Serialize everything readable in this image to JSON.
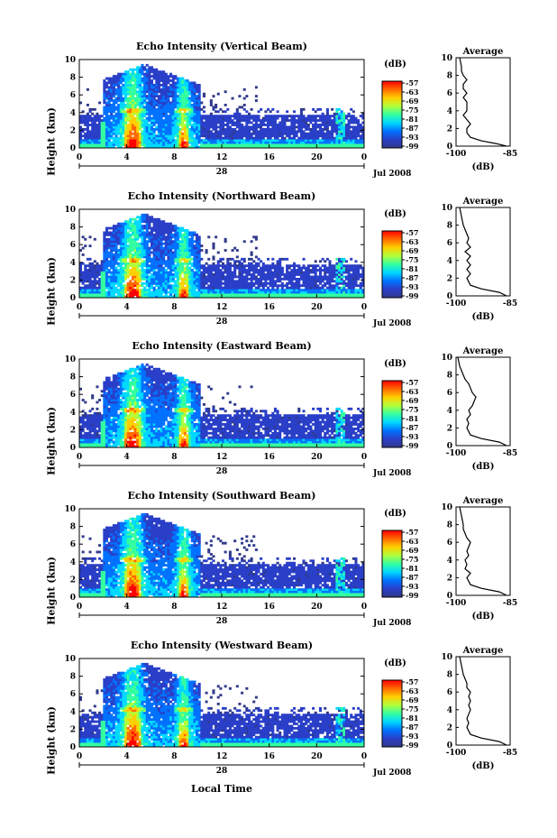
{
  "chart_data": {
    "type": "heatmap",
    "panels": [
      {
        "title": "Echo Intensity (Vertical Beam)",
        "beam": "vertical"
      },
      {
        "title": "Echo Intensity (Northward Beam)",
        "beam": "northward"
      },
      {
        "title": "Echo Intensity (Eastward Beam)",
        "beam": "eastward"
      },
      {
        "title": "Echo Intensity (Southward Beam)",
        "beam": "southward"
      },
      {
        "title": "Echo Intensity (Westward Beam)",
        "beam": "westward"
      }
    ],
    "ylabel": "Height (km)",
    "yticks": [
      "0",
      "2",
      "4",
      "6",
      "8",
      "10"
    ],
    "ylim": [
      0,
      10
    ],
    "xticks": [
      "0",
      "4",
      "8",
      "12",
      "16",
      "20",
      "0"
    ],
    "xlim": [
      0,
      24
    ],
    "day": "28",
    "date": "Jul 2008",
    "xlabel": "Local Time",
    "colorbar": {
      "unit": "(dB)",
      "ticks": [
        "-57",
        "-63",
        "-69",
        "-75",
        "-81",
        "-87",
        "-93",
        "-99"
      ],
      "colors": [
        "#ff0000",
        "#ff6a00",
        "#ffd000",
        "#b0ff3c",
        "#34ffa0",
        "#00d8ff",
        "#0072ff",
        "#2a3fc8",
        "#303a8a"
      ]
    },
    "average": {
      "title": "Average",
      "unit": "(dB)",
      "xticks": [
        "-100",
        "-85"
      ],
      "xlim": [
        -100,
        -85
      ],
      "yticks": [
        "0",
        "2",
        "4",
        "6",
        "8",
        "10"
      ],
      "profiles": [
        [
          [
            0,
            -86
          ],
          [
            0.3,
            -89
          ],
          [
            0.6,
            -93
          ],
          [
            1.0,
            -96
          ],
          [
            1.5,
            -97
          ],
          [
            2,
            -97
          ],
          [
            2.5,
            -96
          ],
          [
            3,
            -97
          ],
          [
            3.5,
            -98
          ],
          [
            4,
            -97
          ],
          [
            4.5,
            -97
          ],
          [
            5,
            -97
          ],
          [
            5.5,
            -98
          ],
          [
            6,
            -97
          ],
          [
            6.5,
            -98
          ],
          [
            7,
            -98
          ],
          [
            7.5,
            -97
          ],
          [
            8,
            -98
          ],
          [
            8.5,
            -98.5
          ],
          [
            9,
            -98.5
          ],
          [
            10,
            -99
          ]
        ],
        [
          [
            0,
            -86
          ],
          [
            0.4,
            -88
          ],
          [
            0.8,
            -93
          ],
          [
            1.2,
            -96
          ],
          [
            2,
            -97
          ],
          [
            2.5,
            -96
          ],
          [
            3,
            -97
          ],
          [
            3.5,
            -96
          ],
          [
            4,
            -97
          ],
          [
            4.5,
            -96
          ],
          [
            5,
            -97.5
          ],
          [
            5.5,
            -96
          ],
          [
            6,
            -97
          ],
          [
            6.5,
            -96.5
          ],
          [
            7,
            -97
          ],
          [
            7.5,
            -97.5
          ],
          [
            8,
            -98
          ],
          [
            9,
            -98.5
          ],
          [
            10,
            -99
          ]
        ],
        [
          [
            0,
            -86
          ],
          [
            0.4,
            -88
          ],
          [
            0.8,
            -93
          ],
          [
            1.2,
            -96
          ],
          [
            2,
            -97
          ],
          [
            2.5,
            -96.5
          ],
          [
            3,
            -97
          ],
          [
            3.5,
            -96
          ],
          [
            4,
            -96.5
          ],
          [
            4.5,
            -95.5
          ],
          [
            5,
            -95
          ],
          [
            5.5,
            -94.5
          ],
          [
            6,
            -95.5
          ],
          [
            6.5,
            -96
          ],
          [
            7,
            -96.5
          ],
          [
            7.5,
            -97.5
          ],
          [
            8,
            -98
          ],
          [
            9,
            -99
          ],
          [
            10,
            -99.5
          ]
        ],
        [
          [
            0,
            -86
          ],
          [
            0.4,
            -88
          ],
          [
            0.8,
            -93
          ],
          [
            1.2,
            -96
          ],
          [
            2,
            -97
          ],
          [
            2.5,
            -96
          ],
          [
            3,
            -97.5
          ],
          [
            3.5,
            -97
          ],
          [
            4,
            -97.5
          ],
          [
            4.5,
            -96.5
          ],
          [
            5,
            -97
          ],
          [
            5.5,
            -96.5
          ],
          [
            6,
            -96
          ],
          [
            6.5,
            -97
          ],
          [
            7,
            -97.5
          ],
          [
            7.5,
            -98
          ],
          [
            8,
            -98
          ],
          [
            9,
            -98.5
          ],
          [
            10,
            -99
          ]
        ],
        [
          [
            0,
            -86
          ],
          [
            0.4,
            -88
          ],
          [
            0.8,
            -93
          ],
          [
            1.2,
            -96
          ],
          [
            2,
            -97
          ],
          [
            2.5,
            -96.5
          ],
          [
            3,
            -97
          ],
          [
            3.5,
            -96.5
          ],
          [
            4,
            -96
          ],
          [
            4.5,
            -96.5
          ],
          [
            5,
            -96
          ],
          [
            5.5,
            -96.5
          ],
          [
            6,
            -96
          ],
          [
            6.5,
            -97
          ],
          [
            7,
            -97
          ],
          [
            7.5,
            -97.5
          ],
          [
            8,
            -98
          ],
          [
            9,
            -98.5
          ],
          [
            10,
            -99
          ]
        ]
      ]
    }
  }
}
